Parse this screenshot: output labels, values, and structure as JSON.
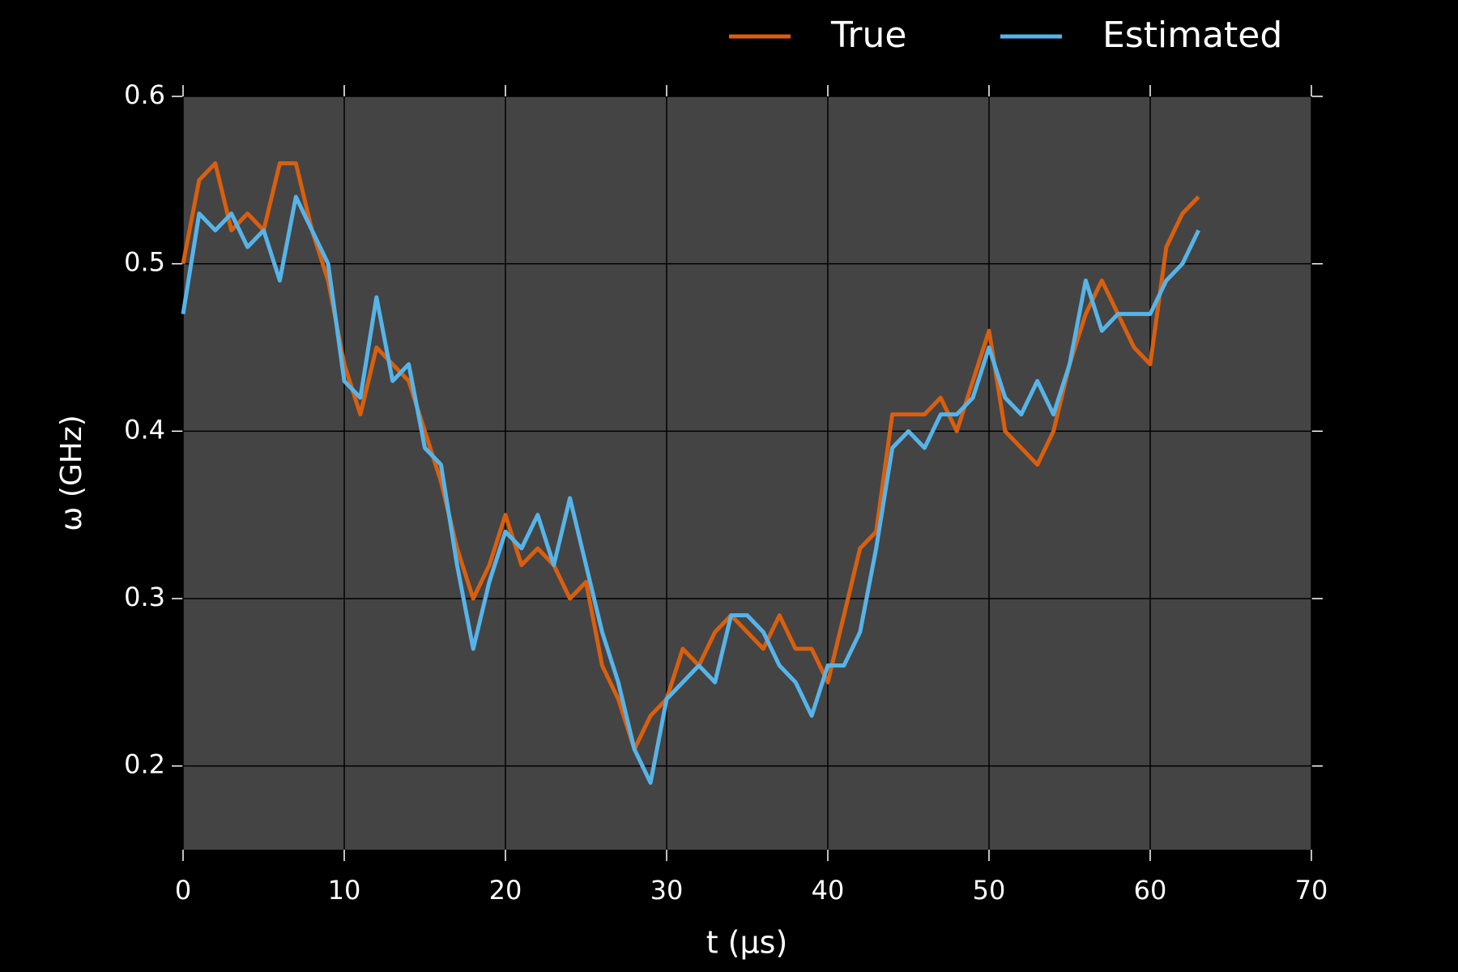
{
  "chart_data": {
    "type": "line",
    "xlabel": "t (μs)",
    "ylabel": "ω (GHz)",
    "x": [
      0,
      1,
      2,
      3,
      4,
      5,
      6,
      7,
      8,
      9,
      10,
      11,
      12,
      13,
      14,
      15,
      16,
      17,
      18,
      19,
      20,
      21,
      22,
      23,
      24,
      25,
      26,
      27,
      28,
      29,
      30,
      31,
      32,
      33,
      34,
      35,
      36,
      37,
      38,
      39,
      40,
      41,
      42,
      43,
      44,
      45,
      46,
      47,
      48,
      49,
      50,
      51,
      52,
      53,
      54,
      55,
      56,
      57,
      58,
      59,
      60,
      61,
      62,
      63
    ],
    "series": [
      {
        "name": "True",
        "color": "#d95f0e",
        "values": [
          0.5,
          0.55,
          0.56,
          0.52,
          0.53,
          0.52,
          0.56,
          0.56,
          0.52,
          0.49,
          0.44,
          0.41,
          0.45,
          0.44,
          0.43,
          0.4,
          0.37,
          0.33,
          0.3,
          0.32,
          0.35,
          0.32,
          0.33,
          0.32,
          0.3,
          0.31,
          0.26,
          0.24,
          0.21,
          0.23,
          0.24,
          0.27,
          0.26,
          0.28,
          0.29,
          0.28,
          0.27,
          0.29,
          0.27,
          0.27,
          0.25,
          0.29,
          0.33,
          0.34,
          0.41,
          0.41,
          0.41,
          0.42,
          0.4,
          0.43,
          0.46,
          0.4,
          0.39,
          0.38,
          0.4,
          0.44,
          0.47,
          0.49,
          0.47,
          0.45,
          0.44,
          0.51,
          0.53,
          0.54
        ]
      },
      {
        "name": "Estimated",
        "color": "#56b4e9",
        "values": [
          0.47,
          0.53,
          0.52,
          0.53,
          0.51,
          0.52,
          0.49,
          0.54,
          0.52,
          0.5,
          0.43,
          0.42,
          0.48,
          0.43,
          0.44,
          0.39,
          0.38,
          0.32,
          0.27,
          0.31,
          0.34,
          0.33,
          0.35,
          0.32,
          0.36,
          0.32,
          0.28,
          0.25,
          0.21,
          0.19,
          0.24,
          0.25,
          0.26,
          0.25,
          0.29,
          0.29,
          0.28,
          0.26,
          0.25,
          0.23,
          0.26,
          0.26,
          0.28,
          0.33,
          0.39,
          0.4,
          0.39,
          0.41,
          0.41,
          0.42,
          0.45,
          0.42,
          0.41,
          0.43,
          0.41,
          0.44,
          0.49,
          0.46,
          0.47,
          0.47,
          0.47,
          0.49,
          0.5,
          0.52
        ]
      }
    ],
    "xlim": [
      0,
      70
    ],
    "xticks": [
      0,
      10,
      20,
      30,
      40,
      50,
      60,
      70
    ],
    "ylim": [
      0.15,
      0.6
    ],
    "yticks": [
      0.2,
      0.3,
      0.4,
      0.5,
      0.6
    ],
    "grid": true,
    "legend": "top"
  }
}
